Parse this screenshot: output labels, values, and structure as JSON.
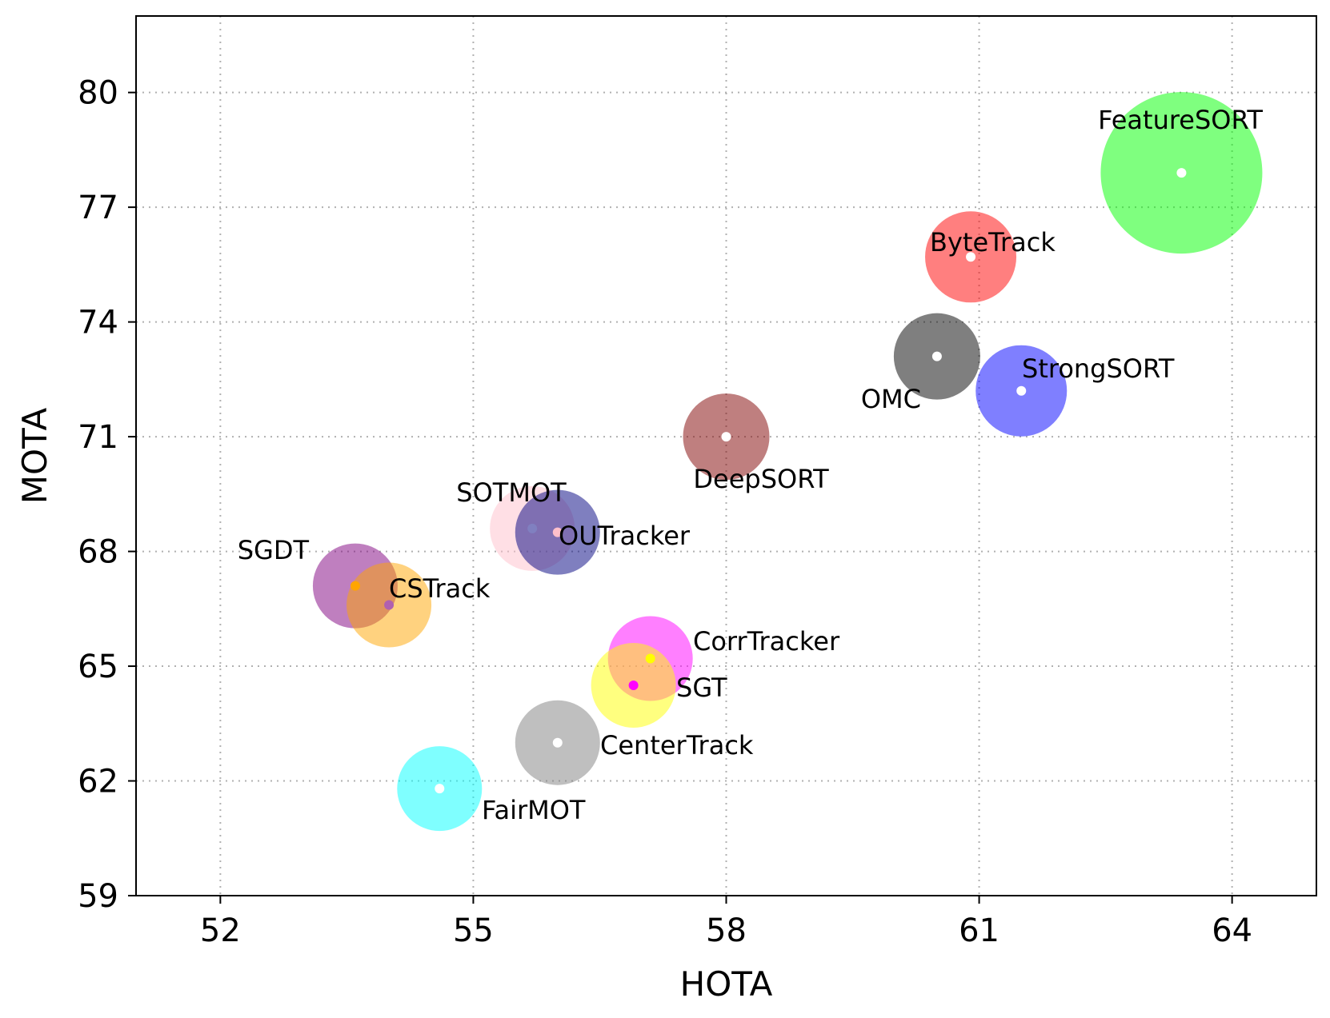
{
  "chart_data": {
    "type": "scatter",
    "xlabel": "HOTA",
    "ylabel": "MOTA",
    "xlim": [
      51,
      65
    ],
    "ylim": [
      59,
      82
    ],
    "xticks": [
      52,
      55,
      58,
      61,
      64
    ],
    "yticks": [
      59,
      62,
      65,
      68,
      71,
      74,
      77,
      80
    ],
    "grid": true,
    "points": [
      {
        "name": "FeatureSORT",
        "x": 63.4,
        "y": 77.9,
        "size": 101,
        "color": "#00ff00",
        "dot": "#ffffff",
        "label_pos": "top"
      },
      {
        "name": "ByteTrack",
        "x": 60.9,
        "y": 75.7,
        "size": 57,
        "color": "#ff0000",
        "dot": "#ffffff",
        "label_pos": "right-up"
      },
      {
        "name": "OMC",
        "x": 60.5,
        "y": 73.1,
        "size": 54,
        "color": "#000000",
        "dot": "#ffffff",
        "label_pos": "bottom-left"
      },
      {
        "name": "StrongSORT",
        "x": 61.5,
        "y": 72.2,
        "size": 57,
        "color": "#0000ff",
        "dot": "#ffffff",
        "label_pos": "right-up"
      },
      {
        "name": "DeepSORT",
        "x": 58.0,
        "y": 71.0,
        "size": 54,
        "color": "#800000",
        "dot": "#ffffff",
        "label_pos": "bottom"
      },
      {
        "name": "SOTMOT",
        "x": 55.7,
        "y": 68.6,
        "size": 53,
        "color": "#ffc0cb",
        "dot": "#8080c0",
        "label_pos": "top"
      },
      {
        "name": "OUTracker",
        "x": 56.0,
        "y": 68.5,
        "size": 53,
        "color": "#000080",
        "dot": "#ffc0cb",
        "label_pos": "right"
      },
      {
        "name": "SGDT",
        "x": 53.6,
        "y": 67.1,
        "size": 53,
        "color": "#800080",
        "dot": "#ffa500",
        "label_pos": "top-left"
      },
      {
        "name": "CSTrack",
        "x": 54.0,
        "y": 66.6,
        "size": 53,
        "color": "#ffa500",
        "dot": "#b060b0",
        "label_pos": "right"
      },
      {
        "name": "CorrTracker",
        "x": 57.1,
        "y": 65.2,
        "size": 53,
        "color": "#ff00ff",
        "dot": "#ffff00",
        "label_pos": "right"
      },
      {
        "name": "SGT",
        "x": 56.9,
        "y": 64.5,
        "size": 53,
        "color": "#ffff00",
        "dot": "#ff00ff",
        "label_pos": "right-down"
      },
      {
        "name": "CenterTrack",
        "x": 56.0,
        "y": 63.0,
        "size": 53,
        "color": "#808080",
        "dot": "#ffffff",
        "label_pos": "right-down"
      },
      {
        "name": "FairMOT",
        "x": 54.6,
        "y": 61.8,
        "size": 53,
        "color": "#00ffff",
        "dot": "#ffffff",
        "label_pos": "right-down"
      }
    ]
  }
}
